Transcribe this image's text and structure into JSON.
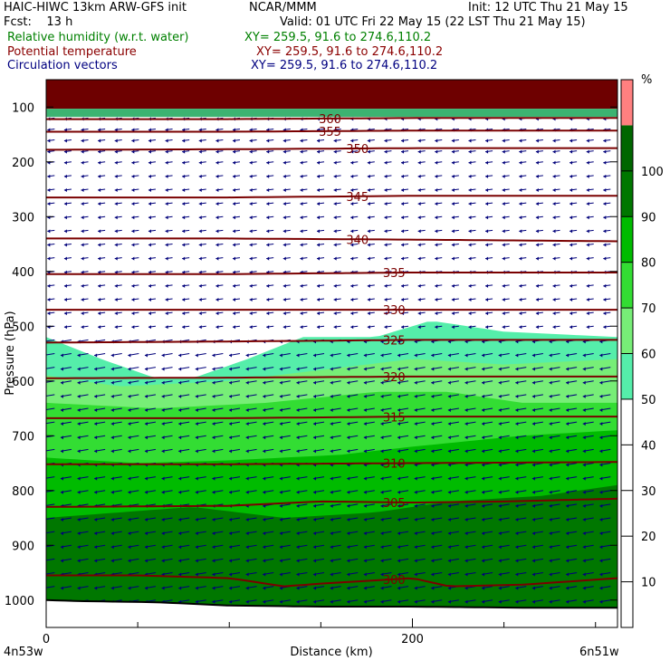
{
  "header": {
    "title_left": "HAIC-HIWC 13km ARW-GFS init",
    "title_center": "NCAR/MMM",
    "init": "Init: 12 UTC Thu 21 May 15",
    "fcst": "Fcst:    13 h",
    "valid": "Valid: 01 UTC Fri 22 May 15 (22 LST Thu 21 May 15)",
    "field1": "Relative humidity (w.r.t. water)",
    "field1_xy": "XY= 259.5, 91.6 to 274.6,110.2",
    "field2": "Potential temperature",
    "field2_xy": "XY= 259.5, 91.6 to 274.6,110.2",
    "field3": "Circulation vectors",
    "field3_xy": "XY= 259.5, 91.6 to 274.6,110.2"
  },
  "colors": {
    "theta": "#7a0000",
    "vector": "#00007a",
    "terrain": "#000000"
  },
  "chart_data": {
    "type": "cross-section",
    "xlabel": "Distance (km)",
    "ylabel": "Pressure (hPa)",
    "x_range": [
      0,
      312
    ],
    "y_range": [
      1050,
      50
    ],
    "x_ticks": [
      0,
      200
    ],
    "x_minor_ticks": [
      50,
      100,
      150,
      250,
      300
    ],
    "y_ticks": [
      100,
      200,
      300,
      400,
      500,
      600,
      700,
      800,
      900,
      1000
    ],
    "endpoint_left": "4n53w",
    "endpoint_right": "6n51w",
    "colorbar": {
      "unit": "%",
      "levels": [
        10,
        20,
        30,
        40,
        50,
        60,
        70,
        80,
        90,
        100
      ],
      "colors": [
        "#ffffff",
        "#ffffff",
        "#ffffff",
        "#ffffff",
        "#ffffff",
        "#55eeaa",
        "#77ee77",
        "#33dd33",
        "#00bb00",
        "#007700",
        "#006600",
        "#ff8080"
      ]
    },
    "theta_isentropes": [
      {
        "label": "300",
        "x": [
          0,
          50,
          100,
          130,
          150,
          200,
          220,
          260,
          312
        ],
        "p": [
          955,
          955,
          960,
          975,
          970,
          960,
          975,
          972,
          960
        ]
      },
      {
        "label": "305",
        "x": [
          0,
          100,
          150,
          200,
          250,
          312
        ],
        "p": [
          830,
          828,
          820,
          822,
          820,
          815
        ]
      },
      {
        "label": "310",
        "x": [
          0,
          100,
          200,
          312
        ],
        "p": [
          752,
          752,
          750,
          748
        ]
      },
      {
        "label": "315",
        "x": [
          0,
          100,
          200,
          312
        ],
        "p": [
          668,
          668,
          665,
          665
        ]
      },
      {
        "label": "320",
        "x": [
          0,
          100,
          200,
          312
        ],
        "p": [
          595,
          594,
          592,
          592
        ]
      },
      {
        "label": "325",
        "x": [
          0,
          100,
          200,
          312
        ],
        "p": [
          530,
          528,
          525,
          525
        ]
      },
      {
        "label": "330",
        "x": [
          0,
          100,
          200,
          312
        ],
        "p": [
          470,
          470,
          470,
          470
        ]
      },
      {
        "label": "335",
        "x": [
          0,
          100,
          200,
          312
        ],
        "p": [
          405,
          405,
          402,
          402
        ]
      },
      {
        "label": "340",
        "x": [
          0,
          100,
          200,
          312
        ],
        "p": [
          340,
          340,
          342,
          345
        ]
      },
      {
        "label": "345",
        "x": [
          0,
          100,
          200,
          312
        ],
        "p": [
          265,
          265,
          262,
          262
        ]
      },
      {
        "label": "350",
        "x": [
          0,
          100,
          200,
          312
        ],
        "p": [
          178,
          177,
          175,
          175
        ]
      },
      {
        "label": "355",
        "x": [
          0,
          100,
          200,
          312
        ],
        "p": [
          145,
          145,
          143,
          143
        ]
      },
      {
        "label": "360",
        "x": [
          0,
          100,
          200,
          312
        ],
        "p": [
          122,
          122,
          120,
          120
        ]
      }
    ],
    "rh_bands": [
      {
        "level": 50,
        "color": "#55eeaa",
        "top_x": [
          0,
          30,
          60,
          80,
          110,
          140,
          180,
          210,
          250,
          312
        ],
        "top_p": [
          520,
          560,
          595,
          595,
          560,
          520,
          520,
          490,
          510,
          520
        ]
      },
      {
        "level": 60,
        "color": "#77ee77",
        "top_x": [
          0,
          40,
          100,
          150,
          200,
          250,
          312
        ],
        "top_p": [
          590,
          610,
          600,
          580,
          560,
          570,
          560
        ]
      },
      {
        "level": 70,
        "color": "#33dd33",
        "top_x": [
          0,
          60,
          120,
          180,
          220,
          260,
          312
        ],
        "top_p": [
          640,
          650,
          640,
          620,
          620,
          640,
          640
        ]
      },
      {
        "level": 80,
        "color": "#00bb00",
        "top_x": [
          0,
          50,
          100,
          160,
          200,
          260,
          312
        ],
        "top_p": [
          740,
          750,
          745,
          735,
          720,
          700,
          690
        ]
      },
      {
        "level": 90,
        "color": "#007700",
        "top_x": [
          0,
          40,
          80,
          130,
          180,
          220,
          270,
          312
        ],
        "top_p": [
          850,
          840,
          830,
          850,
          840,
          820,
          810,
          790
        ]
      }
    ],
    "top_layers": [
      {
        "color": "#6e0000",
        "p_top": 50,
        "p_bottom": 103
      },
      {
        "color": "#3cb371",
        "p_top": 103,
        "p_bottom": 118
      }
    ],
    "terrain": {
      "x": [
        0,
        20,
        60,
        100,
        150,
        200,
        260,
        312
      ],
      "p": [
        1000,
        1002,
        1004,
        1010,
        1012,
        1012,
        1014,
        1014
      ]
    },
    "vectors": {
      "x_spacing_km": 9.2,
      "p_levels": [
        120,
        140,
        160,
        180,
        200,
        225,
        250,
        275,
        300,
        325,
        350,
        375,
        400,
        425,
        450,
        475,
        500,
        525,
        550,
        575,
        600,
        625,
        650,
        675,
        700,
        725,
        750,
        775,
        800,
        825,
        850,
        875,
        900,
        925,
        950,
        975,
        1000
      ]
    }
  }
}
